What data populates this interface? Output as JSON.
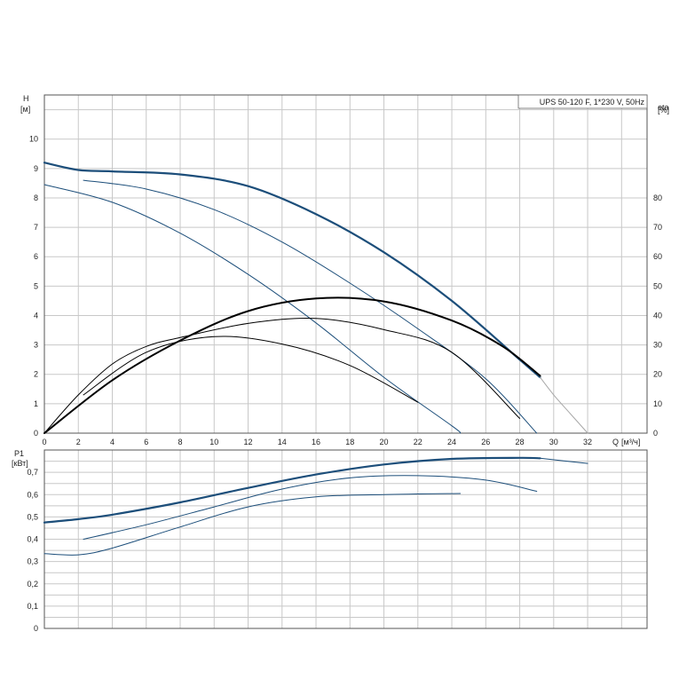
{
  "chart_data": [
    {
      "type": "line",
      "title": "UPS 50-120 F, 1*230 V, 50Hz",
      "ylabel": "H",
      "yunit": "[м]",
      "y2label": "eta",
      "y2unit": "[%]",
      "xlabel": "Q",
      "xunit": "[м³/ч]",
      "xlim": [
        0,
        35.5
      ],
      "ylim": [
        0,
        11.5
      ],
      "y2lim": [
        0,
        115
      ],
      "x_ticks": [
        "0",
        "2",
        "4",
        "6",
        "8",
        "10",
        "12",
        "14",
        "16",
        "18",
        "20",
        "22",
        "24",
        "26",
        "28",
        "30",
        "32"
      ],
      "y_ticks": [
        "0",
        "1",
        "2",
        "3",
        "4",
        "5",
        "6",
        "7",
        "8",
        "9",
        "10"
      ],
      "y2_ticks": [
        "0",
        "10",
        "20",
        "30",
        "40",
        "50",
        "60",
        "70",
        "80"
      ],
      "grid": true,
      "series": [
        {
          "kind": "head",
          "color": "#1c4e7a",
          "weight": 2.2,
          "x": [
            0,
            2,
            4,
            8,
            12,
            16,
            20,
            24,
            28,
            29.2
          ],
          "values": [
            9.2,
            8.95,
            8.9,
            8.8,
            8.4,
            7.45,
            6.15,
            4.5,
            2.5,
            1.9
          ]
        },
        {
          "kind": "head",
          "color": "#a8a8a8",
          "weight": 1.0,
          "x": [
            29.2,
            30,
            31,
            32
          ],
          "values": [
            1.9,
            1.3,
            0.65,
            0
          ]
        },
        {
          "kind": "head",
          "color": "#1c4e7a",
          "weight": 1.0,
          "x": [
            2.3,
            6,
            10,
            14,
            18,
            22,
            26,
            29
          ],
          "values": [
            8.6,
            8.3,
            7.6,
            6.5,
            5.1,
            3.55,
            1.85,
            0
          ]
        },
        {
          "kind": "head",
          "color": "#1c4e7a",
          "weight": 1.0,
          "x": [
            0,
            4,
            8,
            12,
            16,
            20,
            24,
            24.5
          ],
          "values": [
            8.45,
            7.85,
            6.8,
            5.4,
            3.75,
            1.9,
            0.25,
            0
          ]
        },
        {
          "kind": "efficiency",
          "color": "#000000",
          "weight": 2.0,
          "x": [
            0,
            4,
            8,
            12,
            16,
            20,
            24,
            27,
            29.2
          ],
          "values": [
            0,
            18,
            31.5,
            41.5,
            45.8,
            44.8,
            38.3,
            29.5,
            19.5
          ]
        },
        {
          "kind": "efficiency",
          "color": "#000000",
          "weight": 1.0,
          "x": [
            0,
            2,
            4,
            6,
            8,
            12,
            16,
            20,
            24,
            28
          ],
          "values": [
            0,
            13,
            23.5,
            29.5,
            32.5,
            37.3,
            39,
            35.2,
            27.5,
            5
          ]
        },
        {
          "kind": "efficiency",
          "color": "#000000",
          "weight": 1.0,
          "x": [
            2.3,
            6,
            10,
            14,
            18,
            22
          ],
          "values": [
            13,
            27.5,
            32.8,
            30.3,
            23,
            10.5
          ]
        }
      ]
    },
    {
      "type": "line",
      "ylabel": "P1",
      "yunit": "[кВт]",
      "ylim": [
        0,
        0.8
      ],
      "y_ticks": [
        "0",
        "0,1",
        "0,2",
        "0,3",
        "0,4",
        "0,5",
        "0,6",
        "0,7"
      ],
      "grid": true,
      "series": [
        {
          "color": "#1c4e7a",
          "weight": 2.2,
          "x": [
            0,
            2,
            4,
            8,
            12,
            16,
            20,
            24,
            28,
            29.2
          ],
          "values": [
            0.475,
            0.49,
            0.51,
            0.565,
            0.63,
            0.69,
            0.735,
            0.76,
            0.765,
            0.763
          ]
        },
        {
          "color": "#1c4e7a",
          "weight": 1.0,
          "x": [
            29.2,
            32
          ],
          "values": [
            0.763,
            0.74
          ]
        },
        {
          "color": "#1c4e7a",
          "weight": 1.0,
          "x": [
            2.3,
            6,
            10,
            14,
            18,
            22,
            26,
            29
          ],
          "values": [
            0.4,
            0.465,
            0.545,
            0.625,
            0.675,
            0.685,
            0.665,
            0.615
          ]
        },
        {
          "color": "#1c4e7a",
          "weight": 1.0,
          "x": [
            0,
            2,
            4,
            8,
            12,
            16,
            20,
            24.5
          ],
          "values": [
            0.335,
            0.33,
            0.36,
            0.455,
            0.545,
            0.59,
            0.6,
            0.605
          ]
        }
      ]
    }
  ]
}
